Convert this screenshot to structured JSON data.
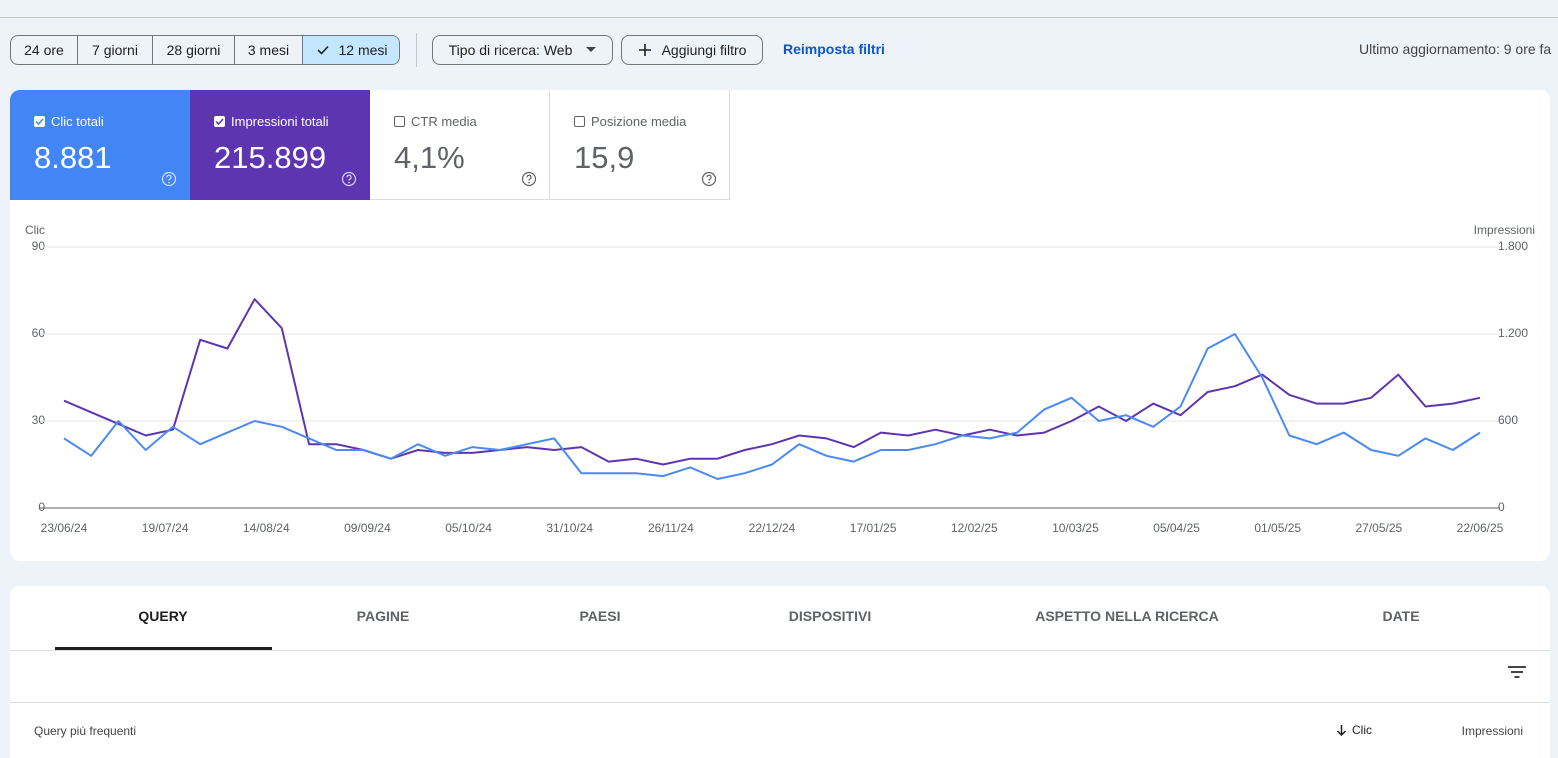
{
  "toolbar": {
    "ranges": [
      "24 ore",
      "7 giorni",
      "28 giorni",
      "3 mesi",
      "12 mesi"
    ],
    "search_type": "Tipo di ricerca: Web",
    "add_filter": "Aggiungi filtro",
    "reset": "Reimposta filtri",
    "last_update": "Ultimo aggiornamento: 9 ore fa"
  },
  "metrics": [
    {
      "label": "Clic totali",
      "value": "8.881"
    },
    {
      "label": "Impressioni totali",
      "value": "215.899"
    },
    {
      "label": "CTR media",
      "value": "4,1%"
    },
    {
      "label": "Posizione media",
      "value": "15,9"
    }
  ],
  "chart_data": {
    "type": "line",
    "y_label": "Clic",
    "y2_label": "Impressioni",
    "x": [
      0,
      7,
      14,
      21,
      28,
      35,
      42,
      49,
      56,
      63,
      70,
      77,
      84,
      91,
      98,
      105,
      112,
      119,
      126,
      133,
      140,
      147,
      154,
      161,
      168,
      175,
      182,
      189,
      196,
      203,
      210,
      217,
      224,
      231,
      238,
      245,
      252,
      259,
      266,
      273,
      280,
      287,
      294,
      301,
      308,
      315,
      322,
      329,
      336,
      343,
      350,
      357,
      364
    ],
    "xlim": [
      0,
      364
    ],
    "xticks": [
      {
        "value": 0,
        "label": "23/06/24"
      },
      {
        "value": 26,
        "label": "19/07/24"
      },
      {
        "value": 52,
        "label": "14/08/24"
      },
      {
        "value": 78,
        "label": "09/09/24"
      },
      {
        "value": 104,
        "label": "05/10/24"
      },
      {
        "value": 130,
        "label": "31/10/24"
      },
      {
        "value": 156,
        "label": "26/11/24"
      },
      {
        "value": 182,
        "label": "22/12/24"
      },
      {
        "value": 208,
        "label": "17/01/25"
      },
      {
        "value": 234,
        "label": "12/02/25"
      },
      {
        "value": 260,
        "label": "10/03/25"
      },
      {
        "value": 286,
        "label": "05/04/25"
      },
      {
        "value": 312,
        "label": "01/05/25"
      },
      {
        "value": 338,
        "label": "27/05/25"
      },
      {
        "value": 364,
        "label": "22/06/25"
      }
    ],
    "ylim": [
      0,
      90
    ],
    "yticks": [
      0,
      30,
      60,
      90
    ],
    "y2lim": [
      0,
      1800
    ],
    "y2ticks": [
      0,
      600,
      {
        "value": 1200,
        "label": "1.200"
      },
      {
        "value": 1800,
        "label": "1.800"
      }
    ],
    "grid": true,
    "series": [
      {
        "color": "#5e35b1",
        "axis": "y2",
        "values": [
          740,
          660,
          580,
          500,
          540,
          1160,
          1100,
          1440,
          1240,
          440,
          440,
          400,
          340,
          400,
          380,
          380,
          400,
          420,
          400,
          420,
          320,
          340,
          300,
          340,
          340,
          400,
          440,
          500,
          480,
          420,
          520,
          500,
          540,
          500,
          540,
          500,
          520,
          600,
          700,
          600,
          720,
          640,
          800,
          840,
          920,
          780,
          720,
          720,
          760,
          920,
          700,
          720,
          760
        ]
      },
      {
        "color": "#4a8af4",
        "axis": "y",
        "values": [
          24,
          18,
          30,
          20,
          28,
          22,
          26,
          30,
          28,
          24,
          20,
          20,
          17,
          22,
          18,
          21,
          20,
          22,
          24,
          12,
          12,
          12,
          11,
          14,
          10,
          12,
          15,
          22,
          18,
          16,
          20,
          20,
          22,
          25,
          24,
          26,
          34,
          38,
          30,
          32,
          28,
          35,
          55,
          60,
          45,
          25,
          22,
          26,
          20,
          18,
          24,
          20,
          26
        ]
      }
    ]
  },
  "tabs": [
    "QUERY",
    "PAGINE",
    "PAESI",
    "DISPOSITIVI",
    "ASPETTO NELLA RICERCA",
    "DATE"
  ],
  "table": {
    "columns": [
      "Query più frequenti",
      "Clic",
      "Impressioni"
    ]
  }
}
